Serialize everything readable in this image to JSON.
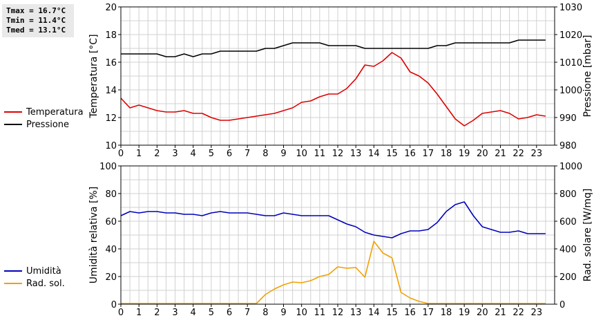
{
  "stats": {
    "tmax": "Tmax = 16.7°C",
    "tmin": "Tmin = 11.4°C",
    "tmed": "Tmed = 13.1°C"
  },
  "colors": {
    "temperatura": "#dd0000",
    "pressione": "#000000",
    "umidita": "#0000bb",
    "radsol": "#f0a000",
    "grid": "#d0d0d0"
  },
  "legend_top": [
    {
      "label": "Temperatura",
      "color": "#dd0000"
    },
    {
      "label": "Pressione",
      "color": "#000000"
    }
  ],
  "legend_bottom": [
    {
      "label": "Umidità",
      "color": "#0000bb"
    },
    {
      "label": "Rad. sol.",
      "color": "#f0a000"
    }
  ],
  "chart_data": [
    {
      "type": "line",
      "ylabel": "Temperatura [°C]",
      "y2label": "Pressione [mbar]",
      "xlim": [
        0,
        24
      ],
      "ylim": [
        10,
        20
      ],
      "y2lim": [
        980,
        1030
      ],
      "xticks": [
        0,
        1,
        2,
        3,
        4,
        5,
        6,
        7,
        8,
        9,
        10,
        11,
        12,
        13,
        14,
        15,
        16,
        17,
        18,
        19,
        20,
        21,
        22,
        23
      ],
      "yticks": [
        10,
        12,
        14,
        16,
        18,
        20
      ],
      "y2ticks": [
        980,
        990,
        1000,
        1010,
        1020,
        1030
      ],
      "grid": true,
      "series": [
        {
          "name": "Temperatura",
          "axis": "left",
          "x": [
            0,
            0.5,
            1,
            1.5,
            2,
            2.5,
            3,
            3.5,
            4,
            4.5,
            5,
            5.5,
            6,
            6.5,
            7,
            7.5,
            8,
            8.5,
            9,
            9.5,
            10,
            10.5,
            11,
            11.5,
            12,
            12.5,
            13,
            13.5,
            14,
            14.5,
            15,
            15.5,
            16,
            16.5,
            17,
            17.5,
            18,
            18.5,
            19,
            19.5,
            20,
            20.5,
            21,
            21.5,
            22,
            22.5,
            23,
            23.5
          ],
          "values": [
            13.4,
            12.7,
            12.9,
            12.7,
            12.5,
            12.4,
            12.4,
            12.5,
            12.3,
            12.3,
            12.0,
            11.8,
            11.8,
            11.9,
            12.0,
            12.1,
            12.2,
            12.3,
            12.5,
            12.7,
            13.1,
            13.2,
            13.5,
            13.7,
            13.7,
            14.1,
            14.8,
            15.8,
            15.7,
            16.1,
            16.7,
            16.3,
            15.3,
            15.0,
            14.5,
            13.7,
            12.8,
            11.9,
            11.4,
            11.8,
            12.3,
            12.4,
            12.5,
            12.3,
            11.9,
            12.0,
            12.2,
            12.1
          ]
        },
        {
          "name": "Pressione",
          "axis": "right",
          "x": [
            0,
            0.5,
            1,
            1.5,
            2,
            2.5,
            3,
            3.5,
            4,
            4.5,
            5,
            5.5,
            6,
            6.5,
            7,
            7.5,
            8,
            8.5,
            9,
            9.5,
            10,
            10.5,
            11,
            11.5,
            12,
            12.5,
            13,
            13.5,
            14,
            14.5,
            15,
            15.5,
            16,
            16.5,
            17,
            17.5,
            18,
            18.5,
            19,
            19.5,
            20,
            20.5,
            21,
            21.5,
            22,
            22.5,
            23,
            23.5
          ],
          "values": [
            1013,
            1013,
            1013,
            1013,
            1013,
            1012,
            1012,
            1013,
            1012,
            1013,
            1013,
            1014,
            1014,
            1014,
            1014,
            1014,
            1015,
            1015,
            1016,
            1017,
            1017,
            1017,
            1017,
            1016,
            1016,
            1016,
            1016,
            1015,
            1015,
            1015,
            1015,
            1015,
            1015,
            1015,
            1015,
            1016,
            1016,
            1017,
            1017,
            1017,
            1017,
            1017,
            1017,
            1017,
            1018,
            1018,
            1018,
            1018
          ]
        }
      ]
    },
    {
      "type": "line",
      "ylabel": "Umidità relativa [%]",
      "y2label": "Rad. solare [W/mq]",
      "xlim": [
        0,
        24
      ],
      "ylim": [
        0,
        100
      ],
      "y2lim": [
        0,
        1000
      ],
      "xticks": [
        0,
        1,
        2,
        3,
        4,
        5,
        6,
        7,
        8,
        9,
        10,
        11,
        12,
        13,
        14,
        15,
        16,
        17,
        18,
        19,
        20,
        21,
        22,
        23
      ],
      "yticks": [
        0,
        20,
        40,
        60,
        80,
        100
      ],
      "y2ticks": [
        0,
        200,
        400,
        600,
        800,
        1000
      ],
      "grid": true,
      "series": [
        {
          "name": "Umidità",
          "axis": "left",
          "x": [
            0,
            0.5,
            1,
            1.5,
            2,
            2.5,
            3,
            3.5,
            4,
            4.5,
            5,
            5.5,
            6,
            6.5,
            7,
            7.5,
            8,
            8.5,
            9,
            9.5,
            10,
            10.5,
            11,
            11.5,
            12,
            12.5,
            13,
            13.5,
            14,
            14.5,
            15,
            15.5,
            16,
            16.5,
            17,
            17.5,
            18,
            18.5,
            19,
            19.5,
            20,
            20.5,
            21,
            21.5,
            22,
            22.5,
            23,
            23.5
          ],
          "values": [
            64,
            67,
            66,
            67,
            67,
            66,
            66,
            65,
            65,
            64,
            66,
            67,
            66,
            66,
            66,
            65,
            64,
            64,
            66,
            65,
            64,
            64,
            64,
            64,
            61,
            58,
            56,
            52,
            50,
            49,
            48,
            51,
            53,
            53,
            54,
            59,
            67,
            72,
            74,
            64,
            56,
            54,
            52,
            52,
            53,
            51,
            51,
            51
          ]
        },
        {
          "name": "Rad. sol.",
          "axis": "right",
          "x": [
            0,
            0.5,
            1,
            1.5,
            2,
            2.5,
            3,
            3.5,
            4,
            4.5,
            5,
            5.5,
            6,
            6.5,
            7,
            7.5,
            8,
            8.5,
            9,
            9.5,
            10,
            10.5,
            11,
            11.5,
            12,
            12.5,
            13,
            13.5,
            14,
            14.5,
            15,
            15.5,
            16,
            16.5,
            17,
            17.5,
            18,
            18.5,
            19,
            19.5,
            20,
            20.5,
            21,
            21.5,
            22,
            22.5,
            23,
            23.5
          ],
          "values": [
            5,
            5,
            5,
            5,
            5,
            5,
            5,
            5,
            5,
            5,
            5,
            5,
            5,
            5,
            5,
            5,
            70,
            110,
            140,
            160,
            155,
            170,
            200,
            215,
            270,
            260,
            265,
            195,
            455,
            370,
            335,
            85,
            45,
            20,
            5,
            5,
            5,
            5,
            5,
            5,
            5,
            5,
            5,
            5,
            5,
            5,
            5,
            5
          ]
        }
      ]
    }
  ]
}
